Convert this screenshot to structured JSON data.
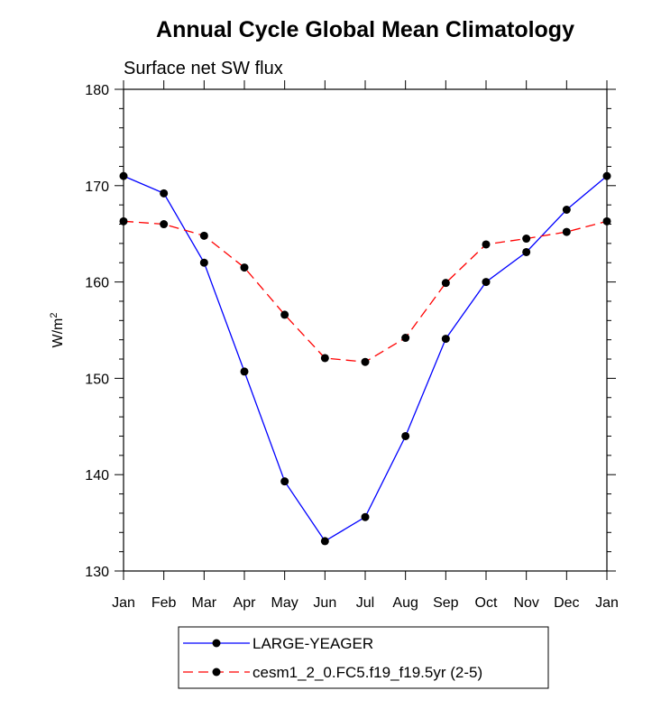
{
  "chart_data": {
    "type": "line",
    "title": "Annual Cycle Global Mean Climatology",
    "subtitle": "Surface net SW flux",
    "ylabel": "W/m",
    "ylabel_sup": "2",
    "xlabel": "",
    "categories": [
      "Jan",
      "Feb",
      "Mar",
      "Apr",
      "May",
      "Jun",
      "Jul",
      "Aug",
      "Sep",
      "Oct",
      "Nov",
      "Dec",
      "Jan"
    ],
    "ylim": [
      130,
      180
    ],
    "yticks": [
      130,
      140,
      150,
      160,
      170,
      180
    ],
    "grid": false,
    "legend_position": "bottom-center",
    "series": [
      {
        "name": "LARGE-YEAGER",
        "color": "#0000ff",
        "dash": "solid",
        "values": [
          171.0,
          169.2,
          162.0,
          150.7,
          139.3,
          133.1,
          135.6,
          144.0,
          154.1,
          160.0,
          163.1,
          167.5,
          171.0
        ]
      },
      {
        "name": "cesm1_2_0.FC5.f19_f19.5yr (2-5)",
        "color": "#ff0000",
        "dash": "dashed",
        "values": [
          166.3,
          166.0,
          164.8,
          161.5,
          156.6,
          152.1,
          151.7,
          154.2,
          159.9,
          163.9,
          164.5,
          165.2,
          166.3
        ]
      }
    ]
  }
}
